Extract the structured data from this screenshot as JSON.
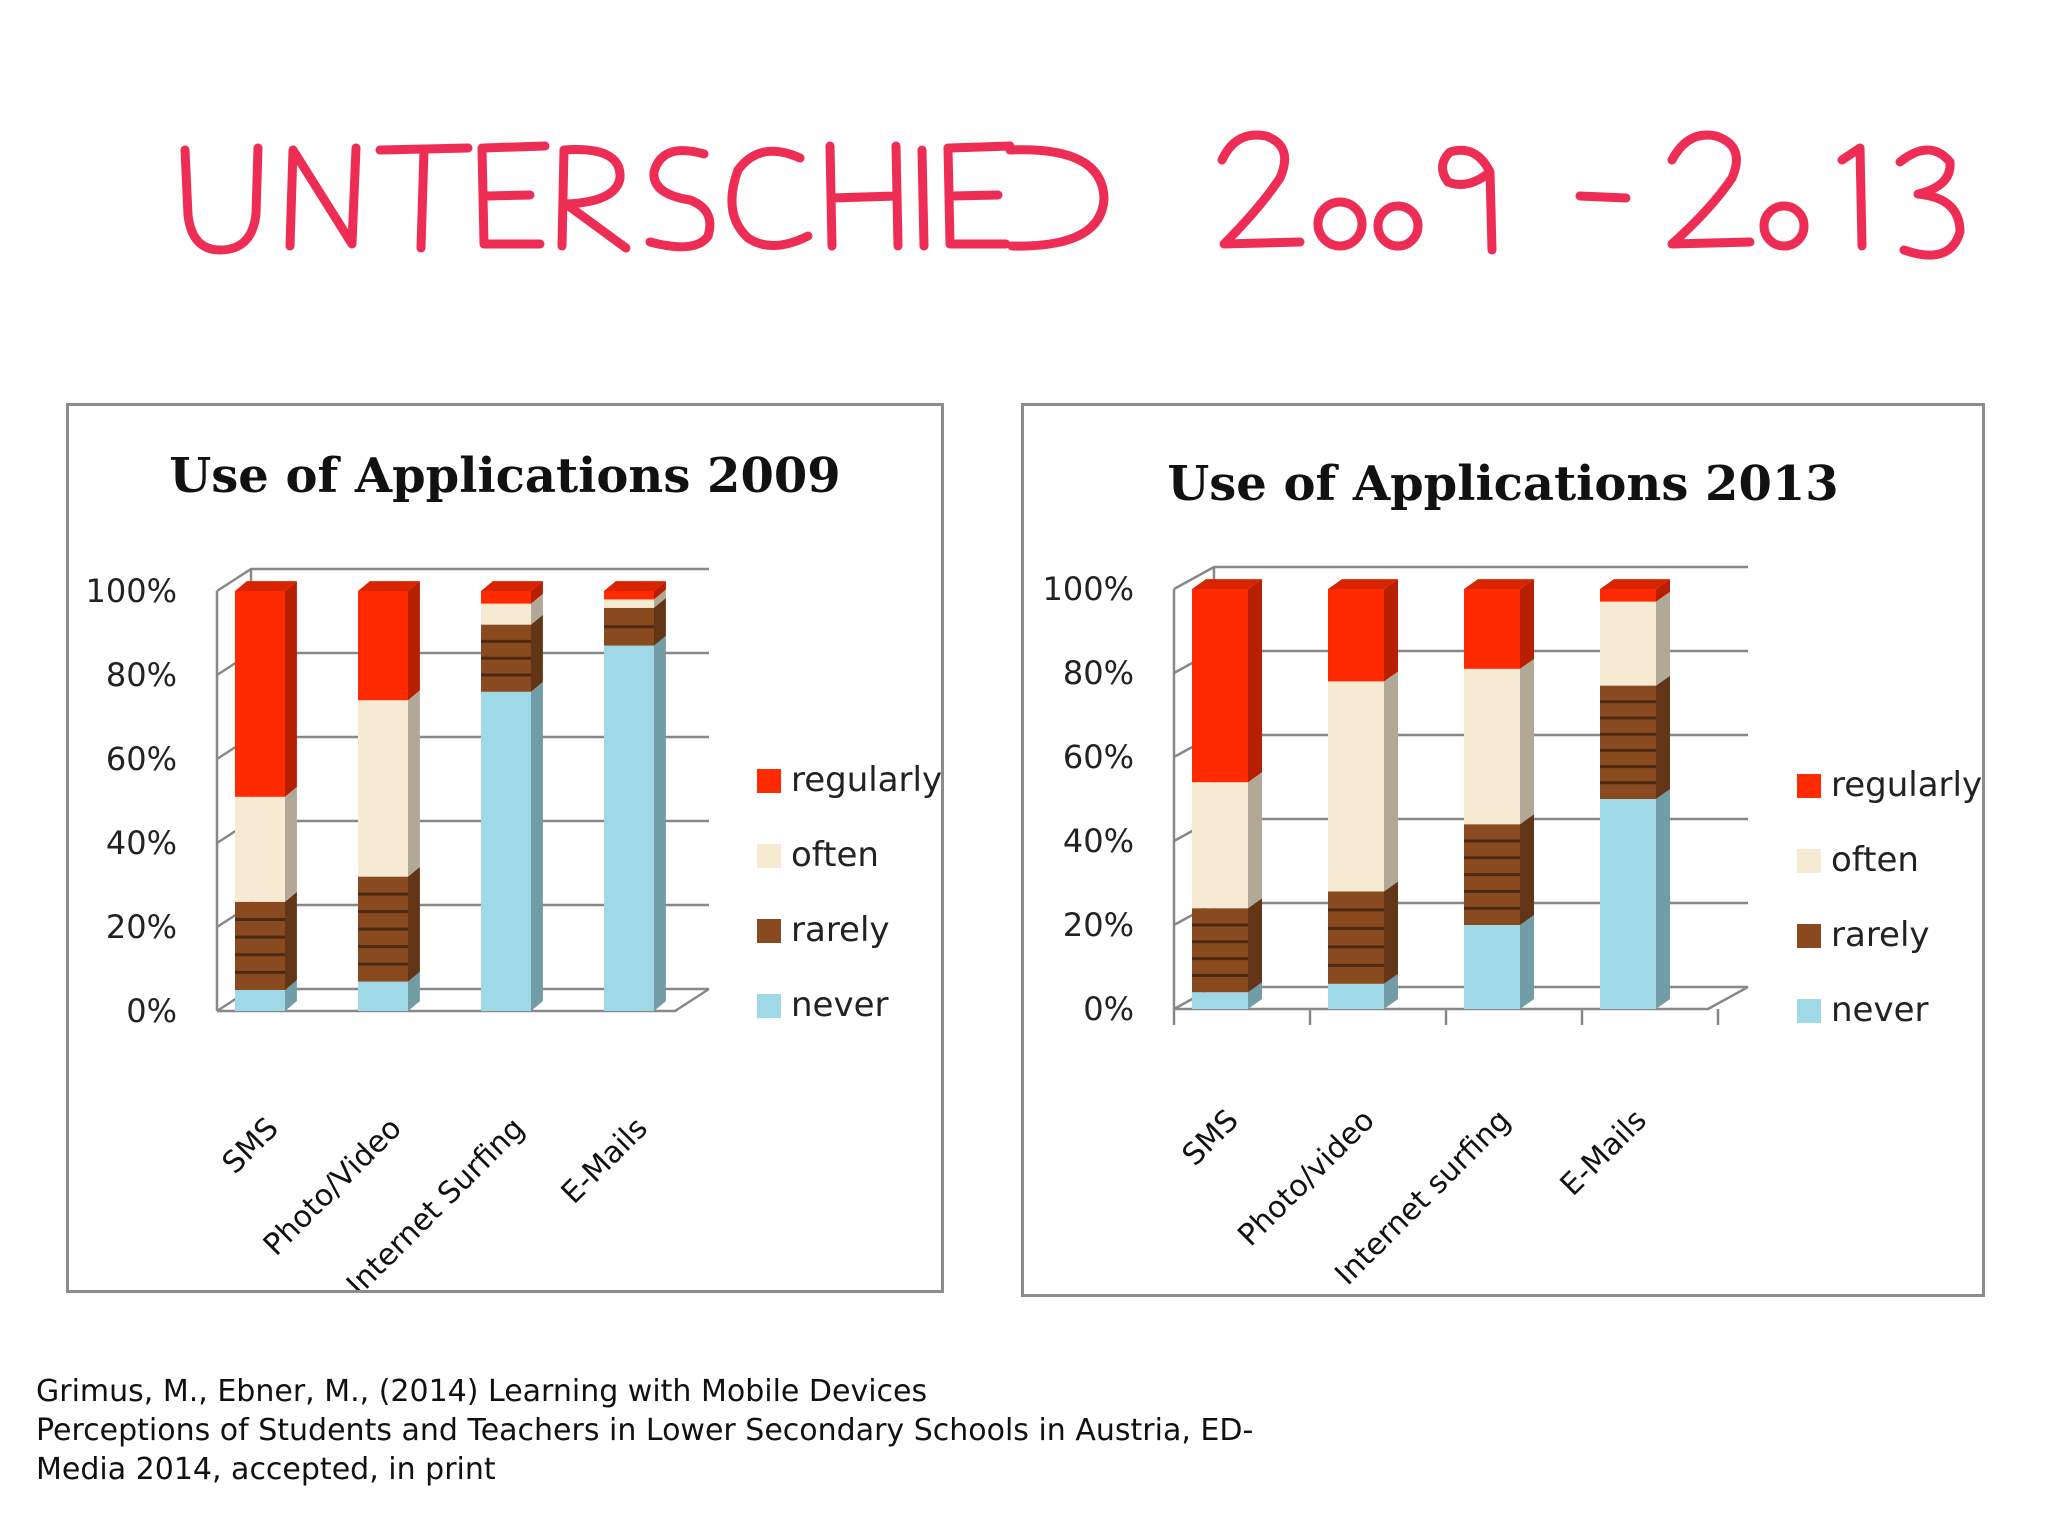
{
  "slide": {
    "title": "UNTERSCHIED 2009 -2013",
    "title_color": "#ee2d55"
  },
  "colors": {
    "regularly": "#ff2a00",
    "often": "#f6ead2",
    "rarely": "#8a4a20",
    "never": "#9fd8e6"
  },
  "chart_data": [
    {
      "type": "bar",
      "stacked": true,
      "title": "Use of Applications 2009",
      "categories": [
        "SMS",
        "Photo/Video",
        "Internet Surfing",
        "E-Mails"
      ],
      "series": [
        {
          "name": "never",
          "values": [
            5,
            7,
            76,
            87
          ]
        },
        {
          "name": "rarely",
          "values": [
            21,
            25,
            16,
            9
          ]
        },
        {
          "name": "often",
          "values": [
            25,
            42,
            5,
            2
          ]
        },
        {
          "name": "regularly",
          "values": [
            49,
            26,
            3,
            2
          ]
        }
      ],
      "yticks": [
        "0%",
        "20%",
        "40%",
        "60%",
        "80%",
        "100%"
      ],
      "ylim": [
        0,
        100
      ],
      "legend": [
        "regularly",
        "often",
        "rarely",
        "never"
      ],
      "legend_position": "right",
      "grid": true
    },
    {
      "type": "bar",
      "stacked": true,
      "title": "Use of Applications 2013",
      "categories": [
        "SMS",
        "Photo/video",
        "Internet surfing",
        "E-Mails"
      ],
      "series": [
        {
          "name": "never",
          "values": [
            4,
            6,
            20,
            50
          ]
        },
        {
          "name": "rarely",
          "values": [
            20,
            22,
            24,
            27
          ]
        },
        {
          "name": "often",
          "values": [
            30,
            50,
            37,
            20
          ]
        },
        {
          "name": "regularly",
          "values": [
            46,
            22,
            19,
            3
          ]
        }
      ],
      "yticks": [
        "0%",
        "20%",
        "40%",
        "60%",
        "80%",
        "100%"
      ],
      "ylim": [
        0,
        100
      ],
      "legend": [
        "regularly",
        "often",
        "rarely",
        "never"
      ],
      "legend_position": "right",
      "grid": true
    }
  ],
  "citation": {
    "line1": "Grimus, M., Ebner, M., (2014) Learning with Mobile Devices",
    "line2": "Perceptions of Students and Teachers in Lower Secondary Schools in Austria, ED-",
    "line3": "Media 2014, accepted, in print"
  }
}
